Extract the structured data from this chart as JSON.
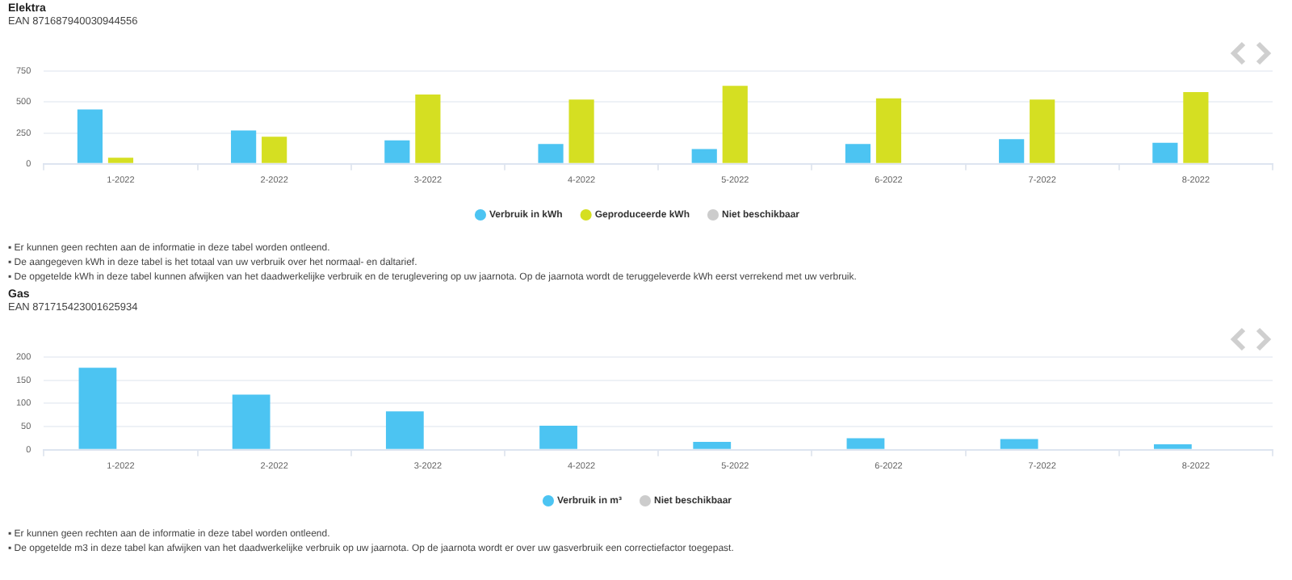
{
  "chart_data": [
    {
      "type": "bar",
      "title": "Elektra",
      "subtitle": "EAN 871687940030944556",
      "categories": [
        "1-2022",
        "2-2022",
        "3-2022",
        "4-2022",
        "5-2022",
        "6-2022",
        "7-2022",
        "8-2022"
      ],
      "series": [
        {
          "name": "Verbruik in kWh",
          "color": "#4cc4f2",
          "values": [
            440,
            270,
            190,
            160,
            120,
            160,
            200,
            170
          ]
        },
        {
          "name": "Geproduceerde kWh",
          "color": "#d5df22",
          "values": [
            50,
            220,
            560,
            520,
            630,
            530,
            520,
            580
          ]
        },
        {
          "name": "Niet beschikbaar",
          "color": "#cccccc",
          "values": [
            null,
            null,
            null,
            null,
            null,
            null,
            null,
            null
          ]
        }
      ],
      "ylim": [
        0,
        750
      ],
      "yticks": [
        0,
        250,
        500,
        750
      ],
      "grid": "y",
      "legend": "bottom",
      "annotations": [
        "▪ Er kunnen geen rechten aan de informatie in deze tabel worden ontleend.",
        "▪ De aangegeven kWh in deze tabel is het totaal van uw verbruik over het normaal- en daltarief.",
        "▪ De opgetelde kWh in deze tabel kunnen afwijken van het daadwerkelijke verbruik en de teruglevering op uw jaarnota. Op de jaarnota wordt de teruggeleverde kWh eerst verrekend met uw verbruik."
      ]
    },
    {
      "type": "bar",
      "title": "Gas",
      "subtitle": "EAN 871715423001625934",
      "categories": [
        "1-2022",
        "2-2022",
        "3-2022",
        "4-2022",
        "5-2022",
        "6-2022",
        "7-2022",
        "8-2022"
      ],
      "series": [
        {
          "name": "Verbruik in m³",
          "color": "#4cc4f2",
          "values": [
            177,
            119,
            83,
            52,
            17,
            25,
            23,
            12
          ]
        },
        {
          "name": "Niet beschikbaar",
          "color": "#cccccc",
          "values": [
            null,
            null,
            null,
            null,
            null,
            null,
            null,
            null
          ]
        }
      ],
      "ylim": [
        0,
        200
      ],
      "yticks": [
        0,
        50,
        100,
        150,
        200
      ],
      "grid": "y",
      "legend": "bottom",
      "annotations": [
        "▪ Er kunnen geen rechten aan de informatie in deze tabel worden ontleend.",
        "▪ De opgetelde m3 in deze tabel kan afwijken van het daadwerkelijke verbruik op uw jaarnota. Op de jaarnota wordt er over uw gasverbruik een correctiefactor toegepast."
      ]
    }
  ]
}
